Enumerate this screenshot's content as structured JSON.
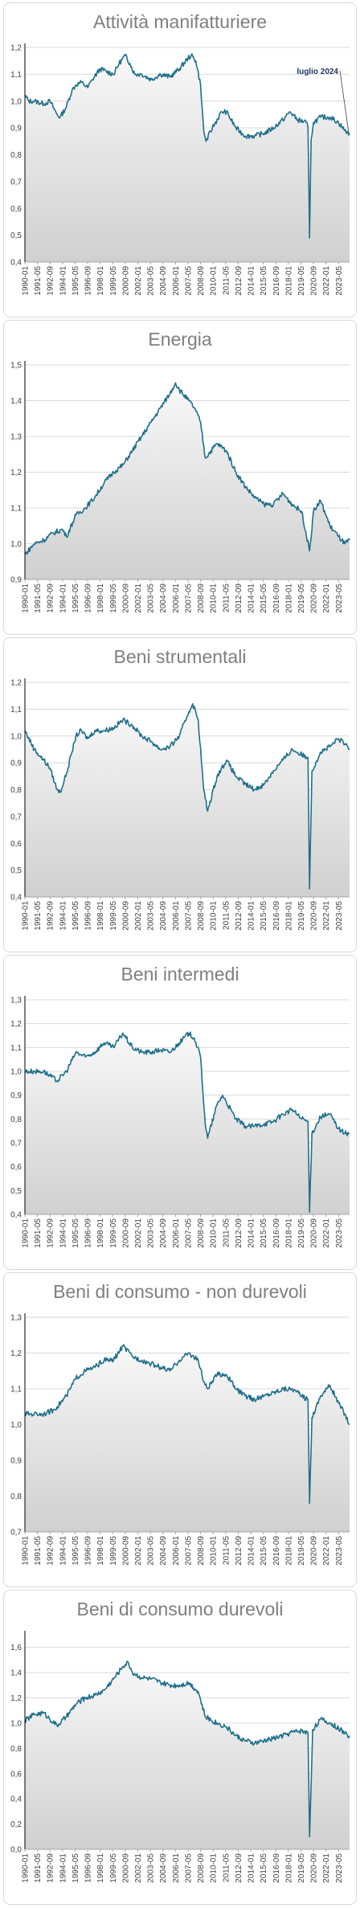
{
  "chart_data": [
    {
      "type": "area",
      "title": "Attività manifatturiere",
      "ylim": [
        0.4,
        1.2
      ],
      "yticks": [
        "0,4",
        "0,5",
        "0,6",
        "0,7",
        "0,8",
        "0,9",
        "1,0",
        "1,1",
        "1,2"
      ],
      "annotation": "luglio 2024",
      "x_start": "1990-01",
      "x_end": "2024-07",
      "keypoints": [
        [
          "1990-01",
          1.02
        ],
        [
          "1990-06",
          1.0
        ],
        [
          "1991-01",
          1.0
        ],
        [
          "1992-01",
          0.99
        ],
        [
          "1992-09",
          1.0
        ],
        [
          "1993-06",
          0.95
        ],
        [
          "1993-10",
          0.94
        ],
        [
          "1994-06",
          0.98
        ],
        [
          "1995-01",
          1.04
        ],
        [
          "1995-06",
          1.06
        ],
        [
          "1996-01",
          1.07
        ],
        [
          "1996-09",
          1.05
        ],
        [
          "1997-03",
          1.08
        ],
        [
          "1998-01",
          1.12
        ],
        [
          "1998-09",
          1.11
        ],
        [
          "1999-06",
          1.1
        ],
        [
          "2000-01",
          1.14
        ],
        [
          "2000-09",
          1.17
        ],
        [
          "2001-03",
          1.14
        ],
        [
          "2001-09",
          1.1
        ],
        [
          "2002-06",
          1.1
        ],
        [
          "2003-06",
          1.08
        ],
        [
          "2004-06",
          1.1
        ],
        [
          "2005-06",
          1.09
        ],
        [
          "2006-06",
          1.12
        ],
        [
          "2007-05",
          1.16
        ],
        [
          "2007-09",
          1.17
        ],
        [
          "2008-03",
          1.15
        ],
        [
          "2008-09",
          1.06
        ],
        [
          "2009-01",
          0.89
        ],
        [
          "2009-04",
          0.85
        ],
        [
          "2009-12",
          0.9
        ],
        [
          "2010-12",
          0.96
        ],
        [
          "2011-06",
          0.96
        ],
        [
          "2012-06",
          0.9
        ],
        [
          "2013-06",
          0.87
        ],
        [
          "2014-06",
          0.87
        ],
        [
          "2015-06",
          0.88
        ],
        [
          "2016-06",
          0.9
        ],
        [
          "2017-06",
          0.93
        ],
        [
          "2018-03",
          0.96
        ],
        [
          "2019-01",
          0.93
        ],
        [
          "2019-12",
          0.92
        ],
        [
          "2020-02",
          0.9
        ],
        [
          "2020-04",
          0.49
        ],
        [
          "2020-06",
          0.86
        ],
        [
          "2020-09",
          0.92
        ],
        [
          "2021-06",
          0.94
        ],
        [
          "2022-06",
          0.94
        ],
        [
          "2023-05",
          0.92
        ],
        [
          "2024-01",
          0.89
        ],
        [
          "2024-07",
          0.88
        ]
      ]
    },
    {
      "type": "area",
      "title": "Energia",
      "ylim": [
        0.9,
        1.5
      ],
      "yticks": [
        "0,9",
        "1,0",
        "1,1",
        "1,2",
        "1,3",
        "1,4",
        "1,5"
      ],
      "x_start": "1990-01",
      "x_end": "2024-07",
      "keypoints": [
        [
          "1990-01",
          0.97
        ],
        [
          "1991-01",
          1.0
        ],
        [
          "1992-01",
          1.01
        ],
        [
          "1993-01",
          1.03
        ],
        [
          "1994-01",
          1.04
        ],
        [
          "1994-06",
          1.02
        ],
        [
          "1995-06",
          1.08
        ],
        [
          "1996-06",
          1.1
        ],
        [
          "1997-06",
          1.13
        ],
        [
          "1998-06",
          1.17
        ],
        [
          "1999-06",
          1.2
        ],
        [
          "2000-06",
          1.22
        ],
        [
          "2001-06",
          1.26
        ],
        [
          "2002-06",
          1.3
        ],
        [
          "2003-06",
          1.34
        ],
        [
          "2004-06",
          1.38
        ],
        [
          "2005-06",
          1.42
        ],
        [
          "2006-01",
          1.45
        ],
        [
          "2006-06",
          1.43
        ],
        [
          "2007-06",
          1.4
        ],
        [
          "2008-01",
          1.38
        ],
        [
          "2008-09",
          1.34
        ],
        [
          "2009-03",
          1.24
        ],
        [
          "2010-06",
          1.28
        ],
        [
          "2011-06",
          1.26
        ],
        [
          "2012-06",
          1.2
        ],
        [
          "2013-06",
          1.16
        ],
        [
          "2014-06",
          1.13
        ],
        [
          "2015-06",
          1.11
        ],
        [
          "2016-06",
          1.11
        ],
        [
          "2017-06",
          1.14
        ],
        [
          "2018-06",
          1.11
        ],
        [
          "2019-06",
          1.09
        ],
        [
          "2020-04",
          0.98
        ],
        [
          "2020-09",
          1.09
        ],
        [
          "2021-06",
          1.12
        ],
        [
          "2022-06",
          1.05
        ],
        [
          "2023-05",
          1.02
        ],
        [
          "2024-01",
          1.0
        ],
        [
          "2024-07",
          1.01
        ]
      ]
    },
    {
      "type": "area",
      "title": "Beni strumentali",
      "ylim": [
        0.4,
        1.2
      ],
      "yticks": [
        "0,4",
        "0,5",
        "0,6",
        "0,7",
        "0,8",
        "0,9",
        "1,0",
        "1,1",
        "1,2"
      ],
      "x_start": "1990-01",
      "x_end": "2024-07",
      "keypoints": [
        [
          "1990-01",
          1.02
        ],
        [
          "1991-01",
          0.95
        ],
        [
          "1992-01",
          0.91
        ],
        [
          "1992-09",
          0.88
        ],
        [
          "1993-06",
          0.8
        ],
        [
          "1993-10",
          0.79
        ],
        [
          "1994-06",
          0.86
        ],
        [
          "1995-01",
          0.94
        ],
        [
          "1995-06",
          1.0
        ],
        [
          "1996-01",
          1.02
        ],
        [
          "1996-09",
          0.99
        ],
        [
          "1997-06",
          1.02
        ],
        [
          "1998-06",
          1.02
        ],
        [
          "1999-06",
          1.03
        ],
        [
          "2000-06",
          1.06
        ],
        [
          "2001-06",
          1.04
        ],
        [
          "2002-06",
          1.0
        ],
        [
          "2003-06",
          0.98
        ],
        [
          "2004-06",
          0.95
        ],
        [
          "2005-06",
          0.96
        ],
        [
          "2006-06",
          1.0
        ],
        [
          "2007-06",
          1.09
        ],
        [
          "2007-11",
          1.12
        ],
        [
          "2008-06",
          1.06
        ],
        [
          "2009-01",
          0.8
        ],
        [
          "2009-06",
          0.72
        ],
        [
          "2010-06",
          0.85
        ],
        [
          "2011-06",
          0.91
        ],
        [
          "2012-06",
          0.85
        ],
        [
          "2013-06",
          0.82
        ],
        [
          "2014-06",
          0.8
        ],
        [
          "2015-06",
          0.82
        ],
        [
          "2016-06",
          0.87
        ],
        [
          "2017-06",
          0.91
        ],
        [
          "2018-06",
          0.95
        ],
        [
          "2019-06",
          0.93
        ],
        [
          "2020-02",
          0.92
        ],
        [
          "2020-04",
          0.43
        ],
        [
          "2020-07",
          0.87
        ],
        [
          "2021-06",
          0.94
        ],
        [
          "2022-06",
          0.96
        ],
        [
          "2023-05",
          0.99
        ],
        [
          "2024-01",
          0.97
        ],
        [
          "2024-07",
          0.95
        ]
      ]
    },
    {
      "type": "area",
      "title": "Beni intermedi",
      "ylim": [
        0.4,
        1.3
      ],
      "yticks": [
        "0,4",
        "0,5",
        "0,6",
        "0,7",
        "0,8",
        "0,9",
        "1,0",
        "1,1",
        "1,2",
        "1,3"
      ],
      "x_start": "1990-01",
      "x_end": "2024-07",
      "keypoints": [
        [
          "1990-01",
          1.0
        ],
        [
          "1991-01",
          1.0
        ],
        [
          "1992-01",
          1.0
        ],
        [
          "1993-06",
          0.96
        ],
        [
          "1994-06",
          1.0
        ],
        [
          "1995-06",
          1.08
        ],
        [
          "1996-06",
          1.06
        ],
        [
          "1997-06",
          1.08
        ],
        [
          "1998-06",
          1.12
        ],
        [
          "1999-06",
          1.1
        ],
        [
          "2000-06",
          1.16
        ],
        [
          "2001-06",
          1.1
        ],
        [
          "2002-06",
          1.08
        ],
        [
          "2003-06",
          1.08
        ],
        [
          "2004-06",
          1.09
        ],
        [
          "2005-06",
          1.08
        ],
        [
          "2006-06",
          1.12
        ],
        [
          "2007-06",
          1.16
        ],
        [
          "2008-01",
          1.14
        ],
        [
          "2008-09",
          1.06
        ],
        [
          "2009-03",
          0.78
        ],
        [
          "2009-06",
          0.72
        ],
        [
          "2010-06",
          0.86
        ],
        [
          "2011-01",
          0.9
        ],
        [
          "2012-06",
          0.8
        ],
        [
          "2013-06",
          0.77
        ],
        [
          "2014-06",
          0.77
        ],
        [
          "2015-06",
          0.78
        ],
        [
          "2016-06",
          0.79
        ],
        [
          "2017-06",
          0.82
        ],
        [
          "2018-06",
          0.84
        ],
        [
          "2019-06",
          0.8
        ],
        [
          "2020-02",
          0.79
        ],
        [
          "2020-04",
          0.41
        ],
        [
          "2020-07",
          0.74
        ],
        [
          "2021-06",
          0.81
        ],
        [
          "2022-06",
          0.82
        ],
        [
          "2023-05",
          0.76
        ],
        [
          "2024-01",
          0.74
        ],
        [
          "2024-07",
          0.74
        ]
      ]
    },
    {
      "type": "area",
      "title": "Beni di consumo - non durevoli",
      "ylim": [
        0.7,
        1.3
      ],
      "yticks": [
        "0,7",
        "0,8",
        "0,9",
        "1,0",
        "1,1",
        "1,2",
        "1,3"
      ],
      "x_start": "1990-01",
      "x_end": "2024-07",
      "keypoints": [
        [
          "1990-01",
          1.03
        ],
        [
          "1991-01",
          1.03
        ],
        [
          "1992-01",
          1.03
        ],
        [
          "1993-01",
          1.04
        ],
        [
          "1993-06",
          1.05
        ],
        [
          "1994-06",
          1.08
        ],
        [
          "1995-06",
          1.13
        ],
        [
          "1996-06",
          1.15
        ],
        [
          "1997-06",
          1.16
        ],
        [
          "1998-06",
          1.18
        ],
        [
          "1999-06",
          1.18
        ],
        [
          "2000-06",
          1.22
        ],
        [
          "2001-06",
          1.19
        ],
        [
          "2002-06",
          1.18
        ],
        [
          "2003-06",
          1.17
        ],
        [
          "2004-06",
          1.16
        ],
        [
          "2005-06",
          1.15
        ],
        [
          "2006-06",
          1.18
        ],
        [
          "2007-06",
          1.2
        ],
        [
          "2008-06",
          1.18
        ],
        [
          "2009-01",
          1.12
        ],
        [
          "2009-06",
          1.1
        ],
        [
          "2010-06",
          1.14
        ],
        [
          "2011-06",
          1.14
        ],
        [
          "2012-06",
          1.1
        ],
        [
          "2013-06",
          1.08
        ],
        [
          "2014-06",
          1.07
        ],
        [
          "2015-06",
          1.08
        ],
        [
          "2016-06",
          1.09
        ],
        [
          "2017-06",
          1.1
        ],
        [
          "2018-06",
          1.1
        ],
        [
          "2019-06",
          1.08
        ],
        [
          "2020-02",
          1.07
        ],
        [
          "2020-04",
          0.78
        ],
        [
          "2020-07",
          1.02
        ],
        [
          "2021-06",
          1.08
        ],
        [
          "2022-06",
          1.11
        ],
        [
          "2023-05",
          1.06
        ],
        [
          "2024-01",
          1.03
        ],
        [
          "2024-07",
          1.0
        ]
      ]
    },
    {
      "type": "area",
      "title": "Beni di consumo durevoli",
      "ylim": [
        0.0,
        1.7
      ],
      "yticks": [
        "0,0",
        "0,2",
        "0,4",
        "0,6",
        "0,8",
        "1,0",
        "1,2",
        "1,4",
        "1,6"
      ],
      "ytick_values": [
        0.0,
        0.2,
        0.4,
        0.6,
        0.8,
        1.0,
        1.2,
        1.4,
        1.6
      ],
      "x_start": "1990-01",
      "x_end": "2024-07",
      "keypoints": [
        [
          "1990-01",
          1.02
        ],
        [
          "1991-01",
          1.07
        ],
        [
          "1992-01",
          1.08
        ],
        [
          "1993-06",
          0.98
        ],
        [
          "1994-06",
          1.05
        ],
        [
          "1995-06",
          1.15
        ],
        [
          "1996-06",
          1.2
        ],
        [
          "1997-06",
          1.22
        ],
        [
          "1998-06",
          1.26
        ],
        [
          "1999-06",
          1.35
        ],
        [
          "2000-06",
          1.45
        ],
        [
          "2001-01",
          1.48
        ],
        [
          "2001-06",
          1.4
        ],
        [
          "2002-06",
          1.36
        ],
        [
          "2003-06",
          1.35
        ],
        [
          "2004-06",
          1.32
        ],
        [
          "2005-06",
          1.3
        ],
        [
          "2006-06",
          1.3
        ],
        [
          "2007-06",
          1.32
        ],
        [
          "2008-06",
          1.25
        ],
        [
          "2009-03",
          1.05
        ],
        [
          "2010-06",
          1.0
        ],
        [
          "2011-06",
          0.97
        ],
        [
          "2012-06",
          0.9
        ],
        [
          "2013-06",
          0.86
        ],
        [
          "2014-06",
          0.84
        ],
        [
          "2015-06",
          0.86
        ],
        [
          "2016-06",
          0.88
        ],
        [
          "2017-06",
          0.9
        ],
        [
          "2018-06",
          0.93
        ],
        [
          "2019-06",
          0.94
        ],
        [
          "2020-02",
          0.92
        ],
        [
          "2020-04",
          0.1
        ],
        [
          "2020-08",
          0.95
        ],
        [
          "2021-06",
          1.03
        ],
        [
          "2022-06",
          1.0
        ],
        [
          "2023-05",
          0.96
        ],
        [
          "2024-01",
          0.92
        ],
        [
          "2024-07",
          0.9
        ]
      ]
    }
  ],
  "x_tick_labels": [
    "1990-01",
    "1991-05",
    "1992-09",
    "1994-01",
    "1995-05",
    "1996-09",
    "1998-01",
    "1999-05",
    "2000-09",
    "2002-01",
    "2003-05",
    "2004-09",
    "2006-01",
    "2007-05",
    "2008-09",
    "2010-01",
    "2011-05",
    "2012-09",
    "2014-01",
    "2015-05",
    "2016-09",
    "2018-01",
    "2019-05",
    "2020-09",
    "2022-01",
    "2023-05"
  ],
  "colors": {
    "line": "#1f6f8b",
    "fill_top": "#f8f8f8",
    "fill_bottom": "#d0d0d0",
    "grid": "#d9d9d9",
    "axis": "#a6a6a6"
  }
}
